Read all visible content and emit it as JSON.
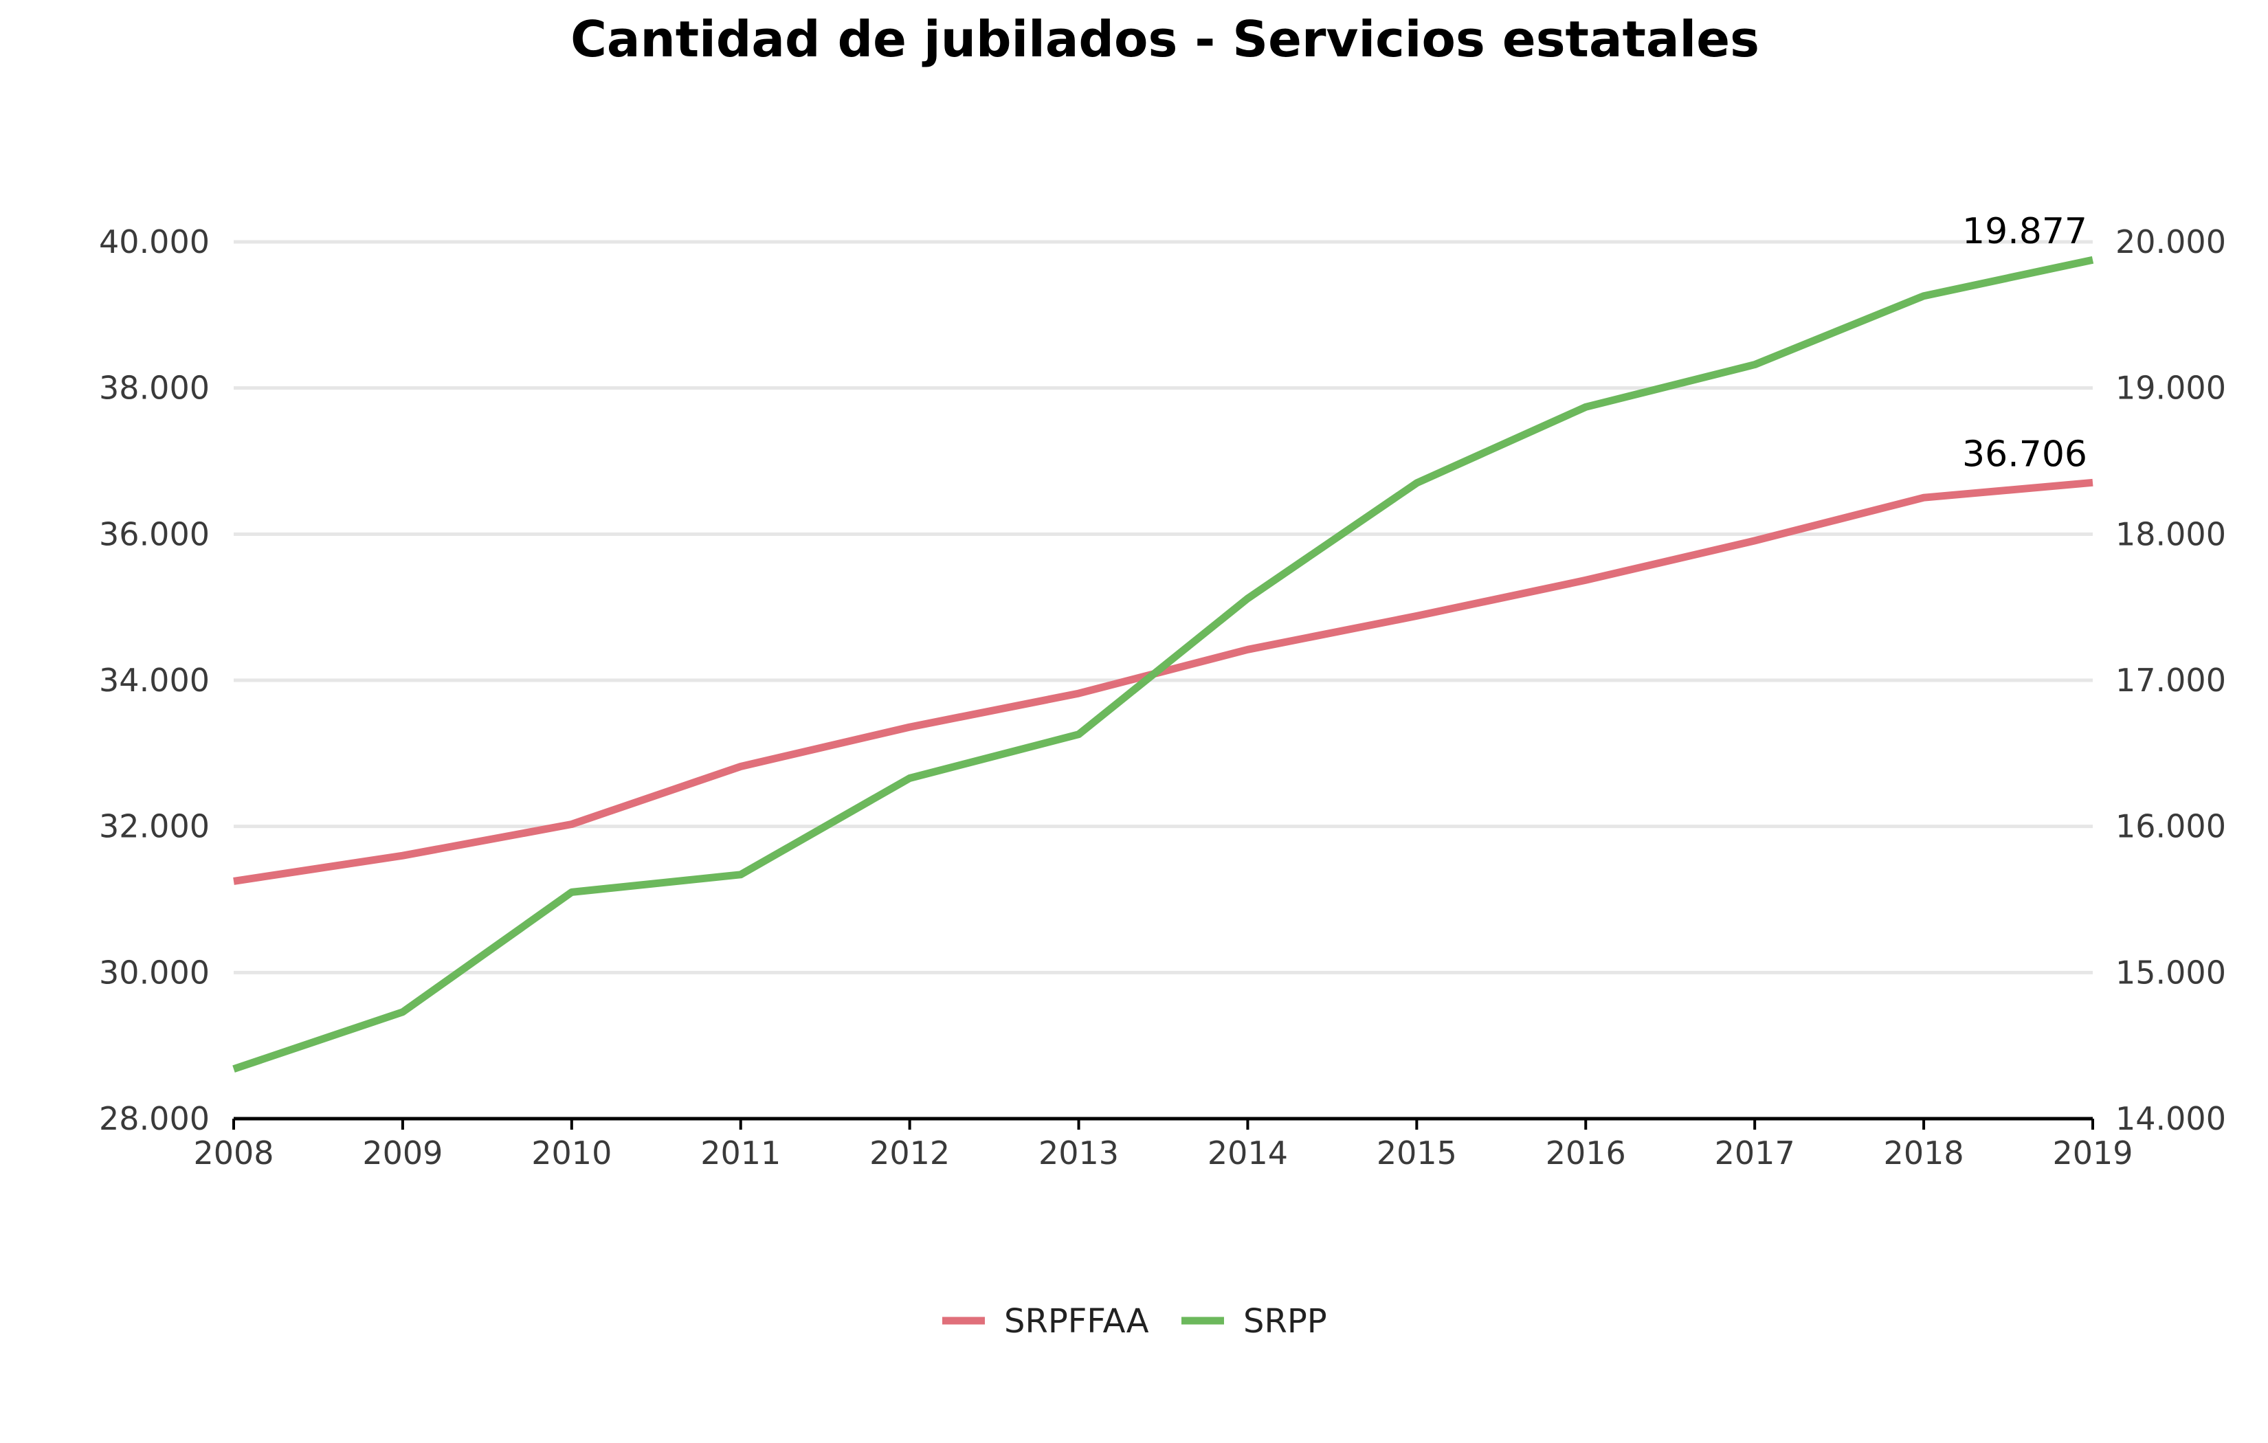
{
  "chart_data": {
    "type": "line",
    "title": "Cantidad de jubilados - Servicios estatales",
    "x": [
      "2008",
      "2009",
      "2010",
      "2011",
      "2012",
      "2013",
      "2014",
      "2015",
      "2016",
      "2017",
      "2018",
      "2019"
    ],
    "left_axis": {
      "ylim": [
        28000,
        40000
      ],
      "ticks": [
        28000,
        30000,
        32000,
        34000,
        36000,
        38000,
        40000
      ],
      "tick_labels": [
        "28.000",
        "30.000",
        "32.000",
        "34.000",
        "36.000",
        "38.000",
        "40.000"
      ]
    },
    "right_axis": {
      "ylim": [
        14000,
        20000
      ],
      "ticks": [
        14000,
        15000,
        16000,
        17000,
        18000,
        19000,
        20000
      ],
      "tick_labels": [
        "14.000",
        "15.000",
        "16.000",
        "17.000",
        "18.000",
        "19.000",
        "20.000"
      ]
    },
    "series": [
      {
        "name": "SRPFFAA",
        "axis": "left",
        "color": "#e06f7a",
        "values": [
          31250,
          31600,
          32030,
          32820,
          33360,
          33820,
          34420,
          34880,
          35370,
          35910,
          36500,
          36706
        ],
        "end_label": "36.706"
      },
      {
        "name": "SRPP",
        "axis": "right",
        "color": "#6cb85c",
        "values": [
          14340,
          14730,
          15550,
          15670,
          16330,
          16630,
          17560,
          18350,
          18870,
          19160,
          19630,
          19877
        ],
        "end_label": "19.877"
      }
    ],
    "grid": true,
    "legend_position": "bottom-center"
  }
}
